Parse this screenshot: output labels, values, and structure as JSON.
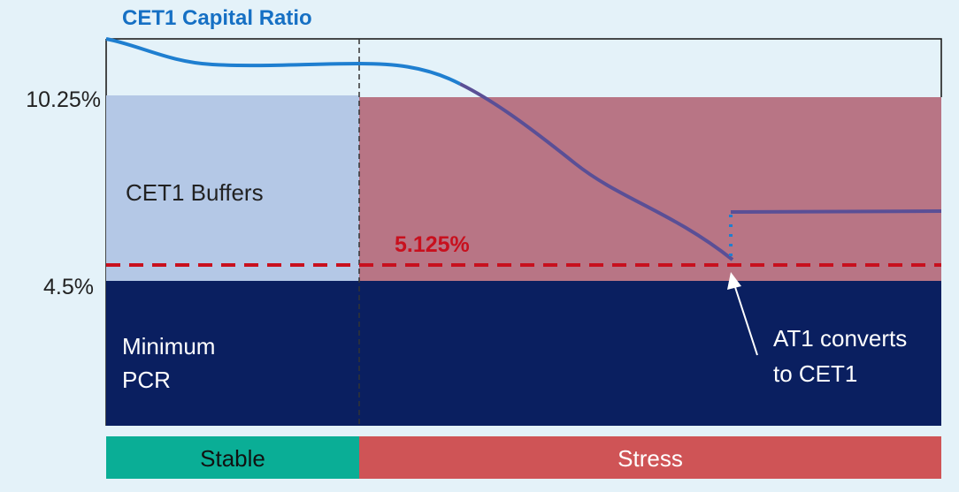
{
  "title": "CET1 Capital Ratio",
  "y_ticks": {
    "upper": "10.25%",
    "lower": "4.5%"
  },
  "regions": {
    "buffers": "CET1 Buffers",
    "minimum_line1": "Minimum",
    "minimum_line2": "PCR"
  },
  "trigger": {
    "label": "5.125%",
    "value": 5.125
  },
  "annotation": {
    "line1": "AT1 converts",
    "line2": "to CET1"
  },
  "phases": {
    "stable": "Stable",
    "stress": "Stress"
  },
  "colors": {
    "background": "#e4f2f9",
    "buffers_stable": "#b4c8e6",
    "buffers_stress": "#b87585",
    "minimum": "#0a1f60",
    "curve": "#1f7fd0",
    "curve_stress": "#5a4f96",
    "trigger_line": "#c8101e",
    "stable_bar": "#0aae96",
    "stress_bar": "#cf5456",
    "title": "#1670c4"
  }
}
